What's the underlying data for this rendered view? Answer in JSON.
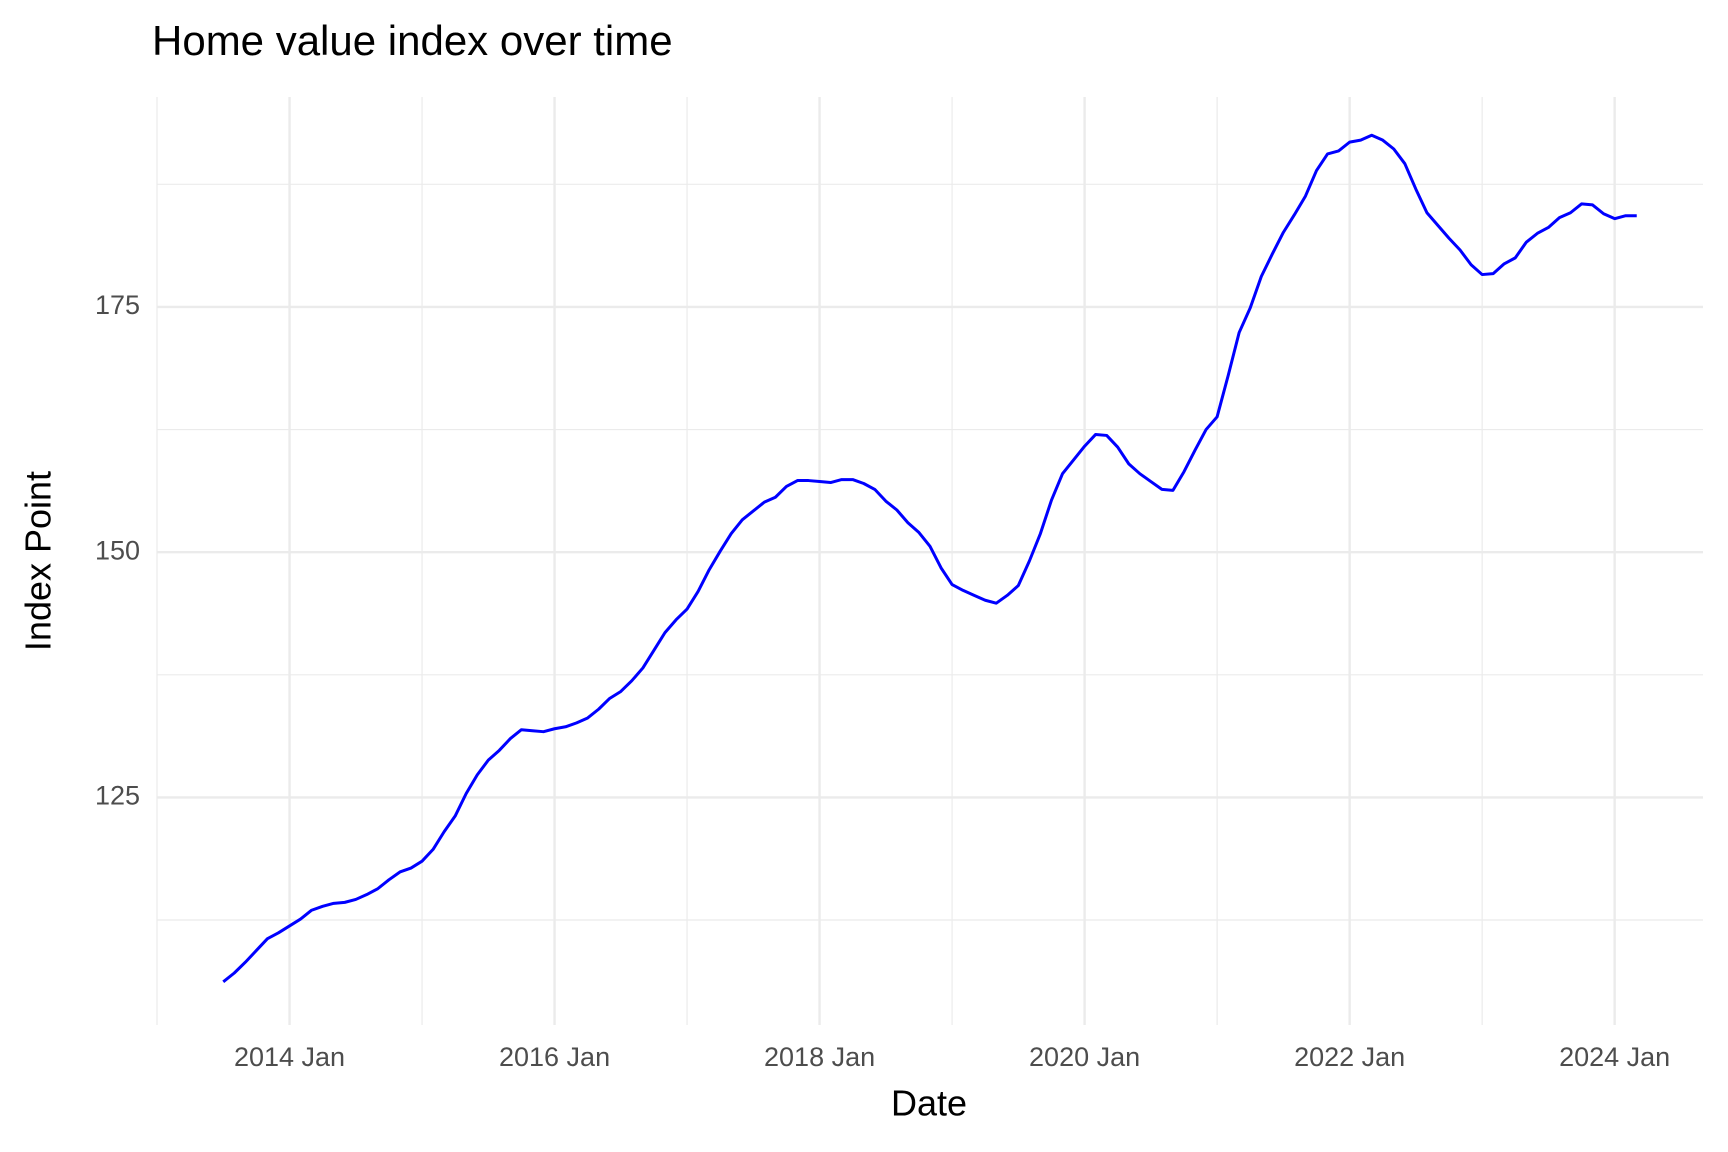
{
  "chart_data": {
    "type": "line",
    "title": "Home value index over time",
    "x_label": "Date",
    "y_label": "Index Point",
    "x": [
      "2013-07",
      "2013-08",
      "2013-09",
      "2013-10",
      "2013-11",
      "2013-12",
      "2014-01",
      "2014-02",
      "2014-03",
      "2014-04",
      "2014-05",
      "2014-06",
      "2014-07",
      "2014-08",
      "2014-09",
      "2014-10",
      "2014-11",
      "2014-12",
      "2015-01",
      "2015-02",
      "2015-03",
      "2015-04",
      "2015-05",
      "2015-06",
      "2015-07",
      "2015-08",
      "2015-09",
      "2015-10",
      "2015-11",
      "2015-12",
      "2016-01",
      "2016-02",
      "2016-03",
      "2016-04",
      "2016-05",
      "2016-06",
      "2016-07",
      "2016-08",
      "2016-09",
      "2016-10",
      "2016-11",
      "2016-12",
      "2017-01",
      "2017-02",
      "2017-03",
      "2017-04",
      "2017-05",
      "2017-06",
      "2017-07",
      "2017-08",
      "2017-09",
      "2017-10",
      "2017-11",
      "2017-12",
      "2018-01",
      "2018-02",
      "2018-03",
      "2018-04",
      "2018-05",
      "2018-06",
      "2018-07",
      "2018-08",
      "2018-09",
      "2018-10",
      "2018-11",
      "2018-12",
      "2019-01",
      "2019-02",
      "2019-03",
      "2019-04",
      "2019-05",
      "2019-06",
      "2019-07",
      "2019-08",
      "2019-09",
      "2019-10",
      "2019-11",
      "2019-12",
      "2020-01",
      "2020-02",
      "2020-03",
      "2020-04",
      "2020-05",
      "2020-06",
      "2020-07",
      "2020-08",
      "2020-09",
      "2020-10",
      "2020-11",
      "2020-12",
      "2021-01",
      "2021-02",
      "2021-03",
      "2021-04",
      "2021-05",
      "2021-06",
      "2021-07",
      "2021-08",
      "2021-09",
      "2021-10",
      "2021-11",
      "2021-12",
      "2022-01",
      "2022-02",
      "2022-03",
      "2022-04",
      "2022-05",
      "2022-06",
      "2022-07",
      "2022-08",
      "2022-09",
      "2022-10",
      "2022-11",
      "2022-12",
      "2023-01",
      "2023-02",
      "2023-03",
      "2023-04",
      "2023-05",
      "2023-06",
      "2023-07",
      "2023-08",
      "2023-09",
      "2023-10",
      "2023-11",
      "2023-12",
      "2024-01",
      "2024-02",
      "2024-03"
    ],
    "values": [
      106.2,
      107.1,
      108.2,
      109.4,
      110.6,
      111.2,
      111.9,
      112.6,
      113.5,
      113.9,
      114.2,
      114.3,
      114.6,
      115.1,
      115.7,
      116.6,
      117.4,
      117.8,
      118.5,
      119.7,
      121.5,
      123.1,
      125.4,
      127.3,
      128.8,
      129.8,
      131.0,
      131.9,
      131.8,
      131.7,
      132.0,
      132.2,
      132.6,
      133.1,
      134.0,
      135.1,
      135.8,
      136.9,
      138.2,
      140.0,
      141.8,
      143.1,
      144.2,
      146.0,
      148.2,
      150.1,
      151.9,
      153.3,
      154.2,
      155.1,
      155.6,
      156.7,
      157.3,
      157.3,
      157.2,
      157.1,
      157.4,
      157.4,
      157.0,
      156.4,
      155.2,
      154.3,
      153.0,
      152.0,
      150.6,
      148.4,
      146.7,
      146.1,
      145.6,
      145.1,
      144.8,
      145.6,
      146.6,
      149.1,
      151.9,
      155.3,
      158.0,
      159.4,
      160.8,
      162.0,
      161.9,
      160.7,
      159.0,
      158.0,
      157.2,
      156.4,
      156.3,
      158.2,
      160.4,
      162.5,
      163.8,
      168.0,
      172.4,
      174.9,
      178.1,
      180.4,
      182.6,
      184.4,
      186.3,
      188.9,
      190.6,
      190.9,
      191.8,
      192.0,
      192.5,
      192.0,
      191.1,
      189.6,
      187.0,
      184.6,
      183.3,
      182.0,
      180.8,
      179.3,
      178.3,
      178.4,
      179.4,
      180.0,
      181.6,
      182.5,
      183.1,
      184.1,
      184.6,
      185.5,
      185.4,
      184.5,
      184.0,
      184.3,
      184.3
    ],
    "color": "#0000ff",
    "xlim": [
      "2013-01",
      "2024-09"
    ],
    "xticks": [
      {
        "value": "2014-01",
        "label": "2014 Jan"
      },
      {
        "value": "2016-01",
        "label": "2016 Jan"
      },
      {
        "value": "2018-01",
        "label": "2018 Jan"
      },
      {
        "value": "2020-01",
        "label": "2020 Jan"
      },
      {
        "value": "2022-01",
        "label": "2022 Jan"
      },
      {
        "value": "2024-01",
        "label": "2024 Jan"
      }
    ],
    "ylim": [
      101.8,
      196.4
    ],
    "yticks": [
      125,
      150,
      175
    ],
    "grid": true
  }
}
